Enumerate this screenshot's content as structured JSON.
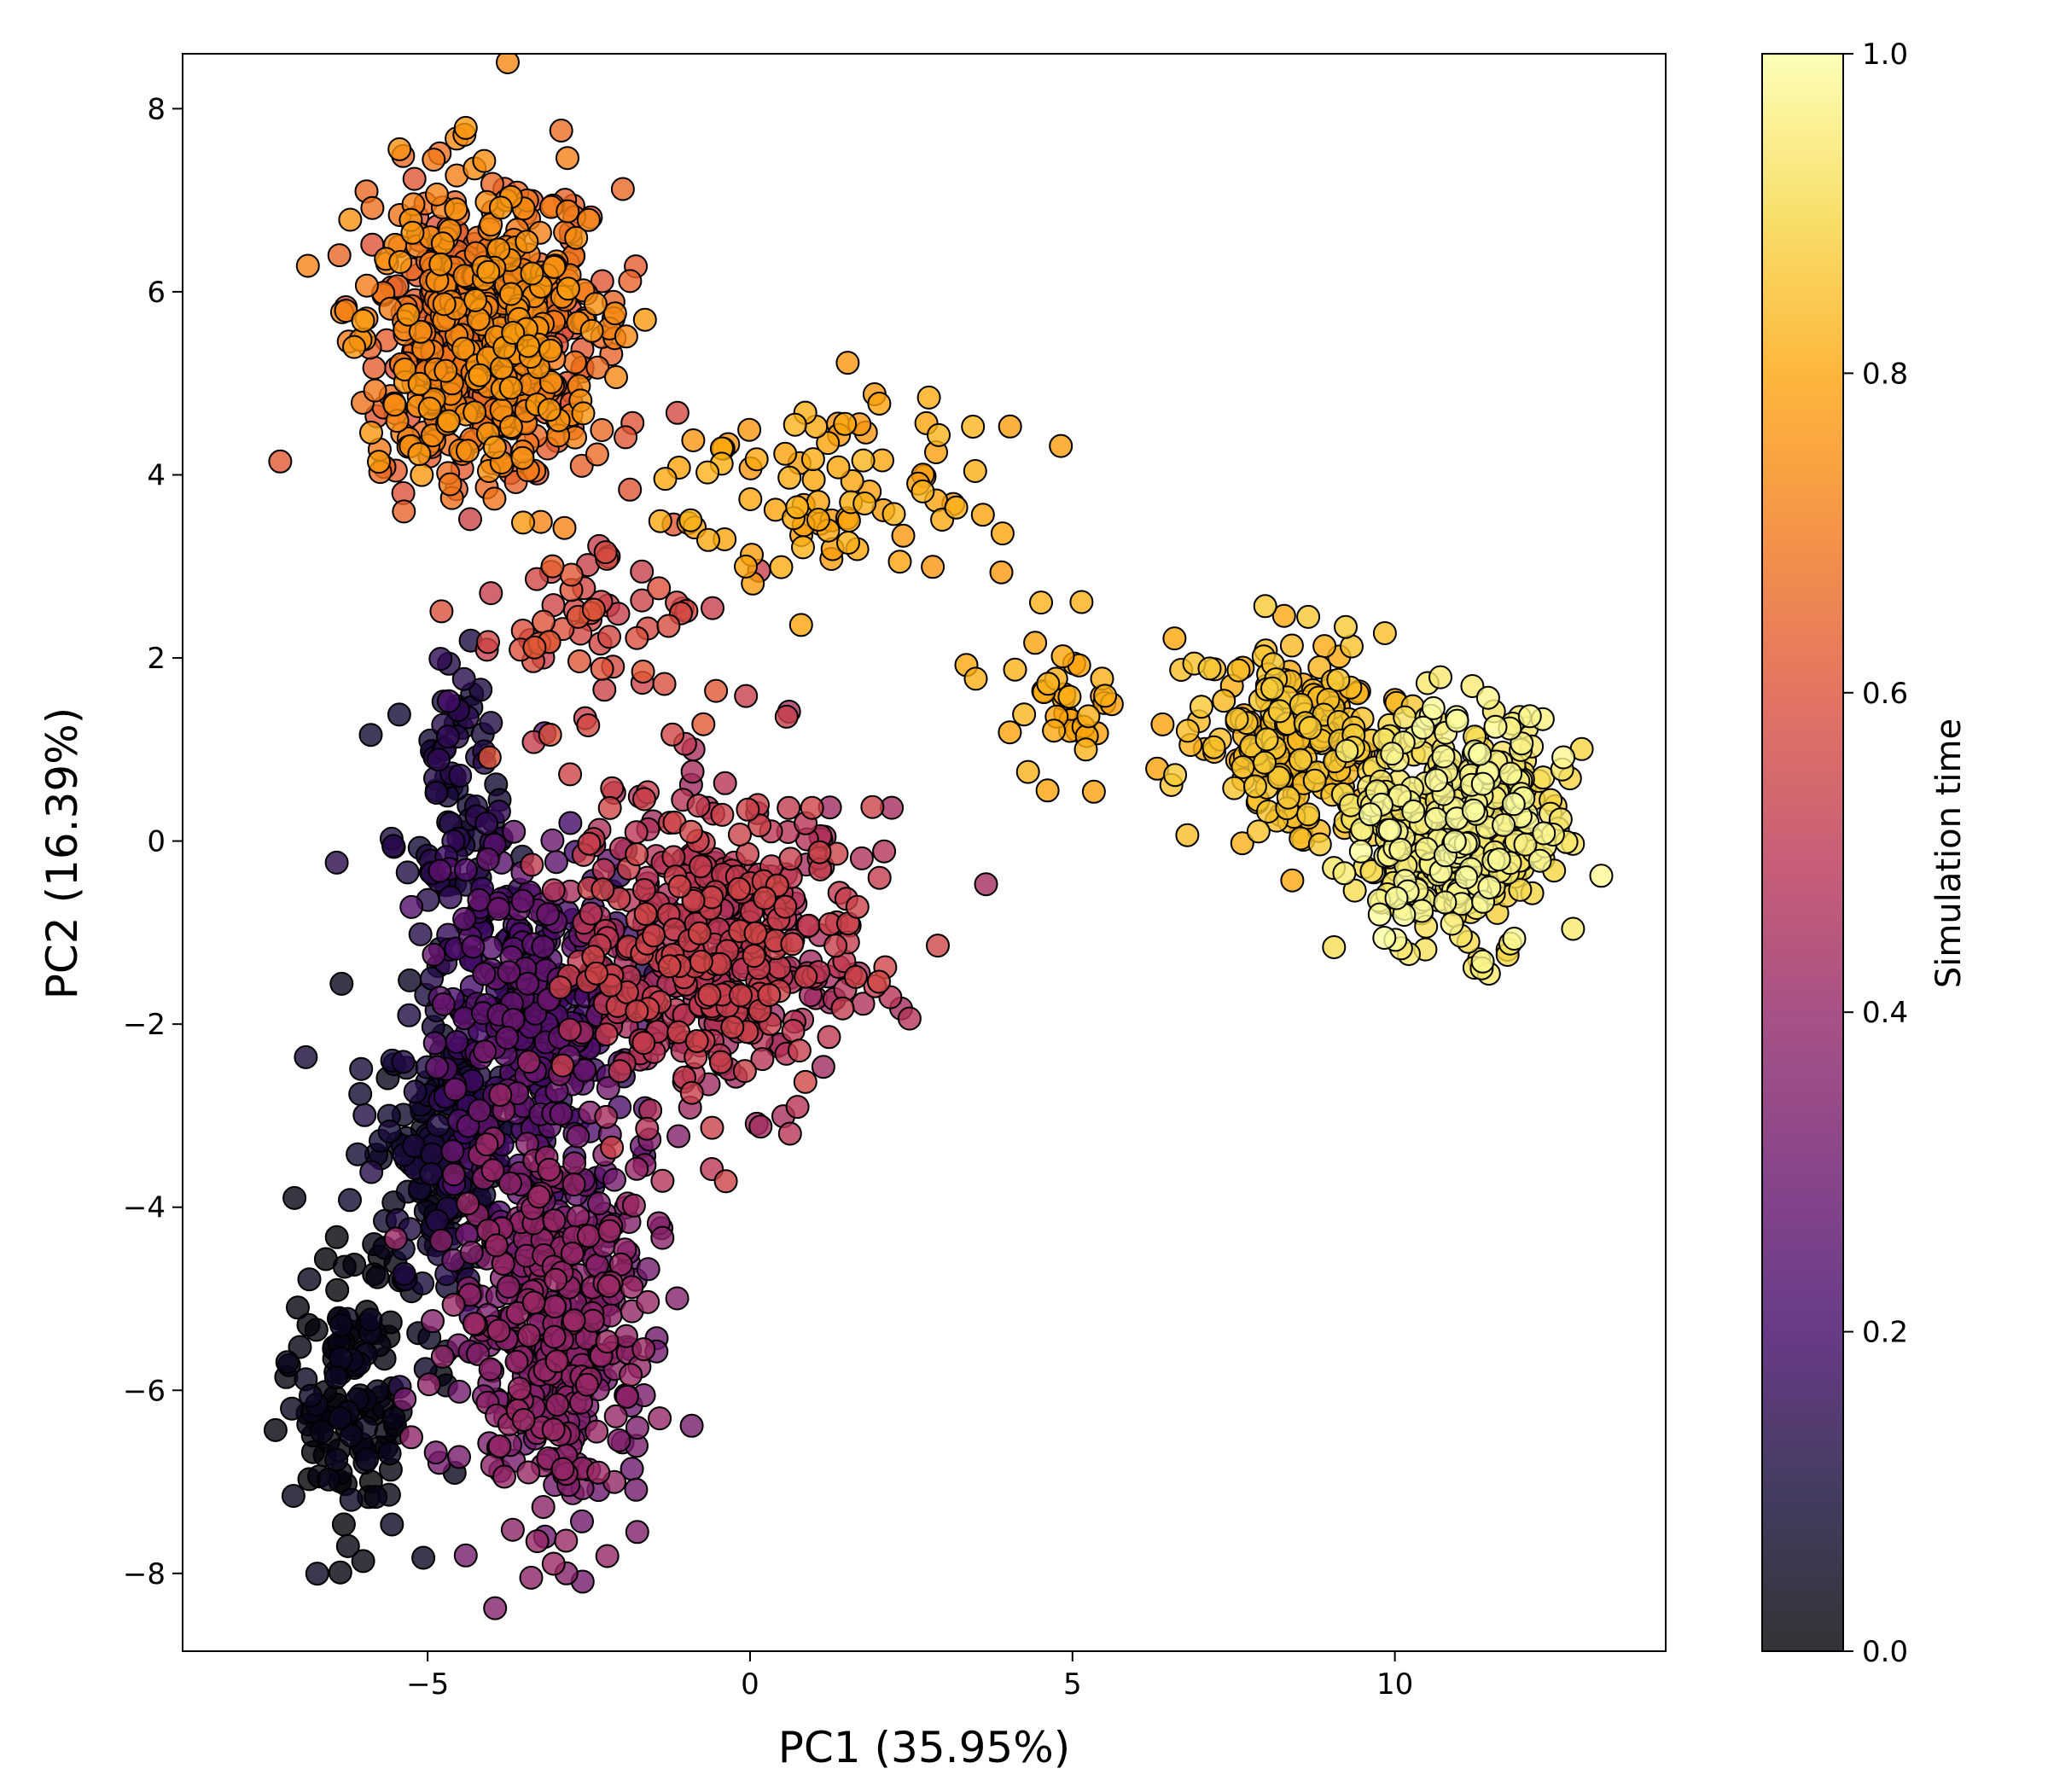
{
  "chart_data": {
    "type": "scatter",
    "title": "",
    "xlabel": "PC1 (35.95%)",
    "ylabel": "PC2 (16.39%)",
    "xlim": [
      -8.8,
      14.2
    ],
    "ylim": [
      -8.85,
      8.6
    ],
    "xticks": [
      -5,
      0,
      5,
      10
    ],
    "xtick_labels": [
      "−5",
      "0",
      "5",
      "10"
    ],
    "yticks": [
      -8,
      -6,
      -4,
      -2,
      0,
      2,
      4,
      6,
      8
    ],
    "ytick_labels": [
      "−8",
      "−6",
      "−4",
      "−2",
      "0",
      "2",
      "4",
      "6",
      "8"
    ],
    "grid": false,
    "legend": "none",
    "colormap": "inferno",
    "color_dimension": "simulation time (0 to 1)",
    "point_alpha": 0.8,
    "point_edgecolor": "#000000",
    "clusters": [
      {
        "x_mean": -6.2,
        "y_mean": -6.0,
        "x_sd": 0.75,
        "y_sd": 1.1,
        "count": 130,
        "t_min": 0.0,
        "t_max": 0.06
      },
      {
        "x_mean": -4.8,
        "y_mean": -3.4,
        "x_sd": 0.8,
        "y_sd": 1.2,
        "count": 200,
        "t_min": 0.04,
        "t_max": 0.14
      },
      {
        "x_mean": -4.6,
        "y_mean": 0.4,
        "x_sd": 0.6,
        "y_sd": 1.0,
        "count": 90,
        "t_min": 0.08,
        "t_max": 0.16
      },
      {
        "x_mean": -3.4,
        "y_mean": -1.9,
        "x_sd": 1.1,
        "y_sd": 1.3,
        "count": 360,
        "t_min": 0.15,
        "t_max": 0.3
      },
      {
        "x_mean": -3.0,
        "y_mean": -5.3,
        "x_sd": 1.0,
        "y_sd": 1.4,
        "count": 440,
        "t_min": 0.3,
        "t_max": 0.42
      },
      {
        "x_mean": -0.5,
        "y_mean": -1.2,
        "x_sd": 1.45,
        "y_sd": 1.2,
        "count": 480,
        "t_min": 0.42,
        "t_max": 0.56
      },
      {
        "x_mean": -2.3,
        "y_mean": 2.2,
        "x_sd": 1.3,
        "y_sd": 1.0,
        "count": 70,
        "t_min": 0.52,
        "t_max": 0.62
      },
      {
        "x_mean": -4.1,
        "y_mean": 5.55,
        "x_sd": 1.25,
        "y_sd": 1.1,
        "count": 620,
        "t_min": 0.6,
        "t_max": 0.78
      },
      {
        "x_mean": 1.2,
        "y_mean": 3.9,
        "x_sd": 1.6,
        "y_sd": 0.75,
        "count": 90,
        "t_min": 0.76,
        "t_max": 0.83
      },
      {
        "x_mean": 5.0,
        "y_mean": 1.6,
        "x_sd": 0.9,
        "y_sd": 0.6,
        "count": 40,
        "t_min": 0.78,
        "t_max": 0.83
      },
      {
        "x_mean": 8.5,
        "y_mean": 1.1,
        "x_sd": 0.95,
        "y_sd": 0.7,
        "count": 220,
        "t_min": 0.8,
        "t_max": 0.88
      },
      {
        "x_mean": 10.9,
        "y_mean": 0.15,
        "x_sd": 1.05,
        "y_sd": 0.85,
        "count": 440,
        "t_min": 0.88,
        "t_max": 1.0
      }
    ],
    "colorbar": {
      "label": "Simulation time",
      "range": [
        0.0,
        1.0
      ],
      "ticks": [
        0.0,
        0.2,
        0.4,
        0.6,
        0.8,
        1.0
      ],
      "tick_labels": [
        "0.0",
        "0.2",
        "0.4",
        "0.6",
        "0.8",
        "1.0"
      ]
    }
  }
}
